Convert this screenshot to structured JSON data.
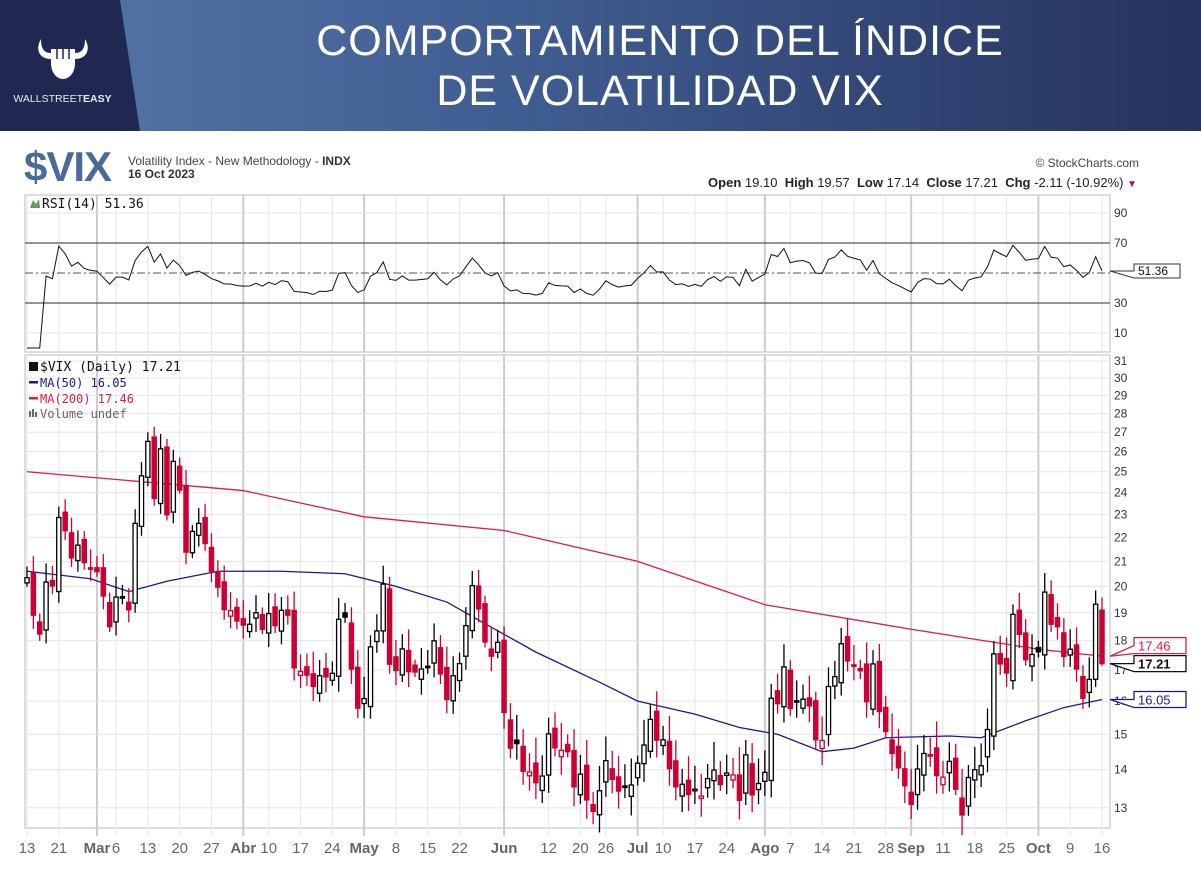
{
  "header": {
    "title_line1": "COMPORTAMIENTO DEL ÍNDICE",
    "title_line2": "DE VOLATILIDAD VIX",
    "logo_text_a": "WALLSTREET",
    "logo_text_b": "EASY"
  },
  "chart_header": {
    "symbol": "$VIX",
    "description": "Volatility Index - New Methodology - ",
    "exchange": "INDX",
    "date": "16 Oct 2023",
    "copyright": "© StockCharts.com",
    "open_label": "Open",
    "open": "19.10",
    "high_label": "High",
    "high": "19.57",
    "low_label": "Low",
    "low": "17.14",
    "close_label": "Close",
    "close": "17.21",
    "chg_label": "Chg",
    "chg": "-2.11 (-10.92%)"
  },
  "colors": {
    "up": "#000000",
    "down": "#cc0033",
    "ma50": "#1a1a8c",
    "ma200": "#d81f45",
    "logo": "#4a6a9c"
  },
  "chart_data": {
    "type": "candlestick",
    "scale": "log",
    "ylim": [
      12.5,
      31.3
    ],
    "yticks": [
      13,
      14,
      15,
      16,
      17,
      18,
      19,
      20,
      21,
      22,
      23,
      24,
      25,
      26,
      27,
      28,
      29,
      30,
      31
    ],
    "legend": {
      "main": "$VIX (Daily) 17.21",
      "ma50": "MA(50) 16.05",
      "ma200": "MA(200) 17.46",
      "volume": "Volume undef"
    },
    "rsi": {
      "label": "RSI(14) 51.36",
      "value": "51.36",
      "period": 14,
      "levels": [
        70,
        50,
        30
      ],
      "yticks": [
        90,
        70,
        30,
        10
      ]
    },
    "badges": {
      "ma200": "17.46",
      "close": "17.21",
      "ma50": "16.05"
    },
    "last_ohlc": [
      19.1,
      19.57,
      17.14,
      17.21
    ],
    "xlabels": [
      {
        "i": 0,
        "t": "13"
      },
      {
        "i": 5,
        "t": "21"
      },
      {
        "i": 11,
        "t": "Mar",
        "m": true
      },
      {
        "i": 14,
        "t": "6"
      },
      {
        "i": 19,
        "t": "13"
      },
      {
        "i": 24,
        "t": "20"
      },
      {
        "i": 29,
        "t": "27"
      },
      {
        "i": 34,
        "t": "Abr",
        "m": true
      },
      {
        "i": 38,
        "t": "10"
      },
      {
        "i": 43,
        "t": "17"
      },
      {
        "i": 48,
        "t": "24"
      },
      {
        "i": 53,
        "t": "May",
        "m": true
      },
      {
        "i": 58,
        "t": "8"
      },
      {
        "i": 63,
        "t": "15"
      },
      {
        "i": 68,
        "t": "22"
      },
      {
        "i": 75,
        "t": "Jun",
        "m": true
      },
      {
        "i": 82,
        "t": "12"
      },
      {
        "i": 87,
        "t": "20"
      },
      {
        "i": 91,
        "t": "26"
      },
      {
        "i": 96,
        "t": "Jul",
        "m": true
      },
      {
        "i": 100,
        "t": "10"
      },
      {
        "i": 105,
        "t": "17"
      },
      {
        "i": 110,
        "t": "24"
      },
      {
        "i": 116,
        "t": "Ago",
        "m": true
      },
      {
        "i": 120,
        "t": "7"
      },
      {
        "i": 125,
        "t": "14"
      },
      {
        "i": 130,
        "t": "21"
      },
      {
        "i": 135,
        "t": "28"
      },
      {
        "i": 139,
        "t": "Sep",
        "m": true
      },
      {
        "i": 144,
        "t": "11"
      },
      {
        "i": 149,
        "t": "18"
      },
      {
        "i": 154,
        "t": "25"
      },
      {
        "i": 159,
        "t": "Oct",
        "m": true
      },
      {
        "i": 164,
        "t": "9"
      },
      {
        "i": 169,
        "t": "16"
      }
    ],
    "close": [
      20.34,
      18.91,
      18.23,
      20.17,
      20.02,
      22.87,
      22.29,
      21.14,
      21.67,
      20.95,
      20.7,
      20.58,
      19.63,
      18.49,
      19.59,
      19.59,
      19.11,
      22.61,
      24.8,
      26.52,
      23.73,
      26.14,
      22.99,
      25.51,
      24.12,
      21.38,
      22.26,
      22.61,
      21.74,
      20.6,
      19.97,
      19.12,
      19.08,
      18.7,
      18.55,
      18.58,
      19.0,
      18.4,
      18.97,
      18.53,
      19.09,
      18.91,
      17.07,
      16.95,
      16.83,
      16.46,
      16.81,
      16.77,
      16.89,
      18.76,
      18.84,
      17.03,
      15.78,
      16.08,
      17.78,
      18.34,
      20.09,
      17.19,
      16.98,
      17.71,
      16.94,
      16.93,
      17.03,
      17.12,
      17.99,
      16.87,
      16.05,
      16.81,
      17.21,
      18.53,
      20.03,
      19.14,
      17.95,
      17.46,
      17.94,
      15.65,
      14.6,
      14.73,
      13.96,
      13.94,
      13.65,
      13.83,
      15.01,
      14.61,
      14.54,
      14.5,
      13.54,
      13.88,
      13.2,
      12.91,
      13.44,
      14.25,
      13.74,
      13.43,
      13.54,
      13.59,
      14.18,
      14.69,
      15.44,
      14.83,
      14.84,
      14.03,
      13.54,
      13.61,
      13.34,
      13.48,
      13.3,
      13.76,
      13.99,
      13.6,
      13.91,
      13.86,
      13.19,
      14.41,
      13.33,
      13.63,
      13.93,
      16.09,
      15.92,
      17.1,
      15.77,
      15.99,
      16.06,
      15.85,
      14.84,
      14.82,
      16.46,
      16.78,
      17.89,
      17.3,
      17.12,
      16.97,
      15.98,
      17.2,
      15.68,
      15.08,
      14.45,
      14.05,
      13.57,
      13.09,
      14.02,
      14.45,
      14.4,
      13.84,
      13.8,
      14.23,
      13.48,
      12.82,
      13.79,
      14.0,
      14.11,
      15.14,
      17.54,
      17.2,
      16.9,
      18.94,
      18.22,
      17.34,
      17.52,
      17.61,
      19.78,
      18.58,
      18.49,
      17.45,
      17.7,
      17.03,
      16.09,
      16.69,
      19.32,
      17.21
    ],
    "ma200": [
      [
        0,
        25.0
      ],
      [
        34,
        24.1
      ],
      [
        53,
        22.9
      ],
      [
        75,
        22.3
      ],
      [
        96,
        21.0
      ],
      [
        116,
        19.3
      ],
      [
        139,
        18.4
      ],
      [
        159,
        17.7
      ],
      [
        169,
        17.46
      ]
    ],
    "ma50": [
      [
        0,
        20.6
      ],
      [
        10,
        20.3
      ],
      [
        16,
        19.8
      ],
      [
        22,
        20.2
      ],
      [
        30,
        20.6
      ],
      [
        40,
        20.6
      ],
      [
        50,
        20.5
      ],
      [
        58,
        20.0
      ],
      [
        66,
        19.4
      ],
      [
        72,
        18.6
      ],
      [
        80,
        17.6
      ],
      [
        90,
        16.6
      ],
      [
        96,
        16.0
      ],
      [
        105,
        15.6
      ],
      [
        112,
        15.2
      ],
      [
        118,
        15.0
      ],
      [
        125,
        14.5
      ],
      [
        130,
        14.6
      ],
      [
        135,
        14.9
      ],
      [
        145,
        14.95
      ],
      [
        150,
        14.9
      ],
      [
        157,
        15.4
      ],
      [
        163,
        15.8
      ],
      [
        169,
        16.05
      ]
    ]
  }
}
